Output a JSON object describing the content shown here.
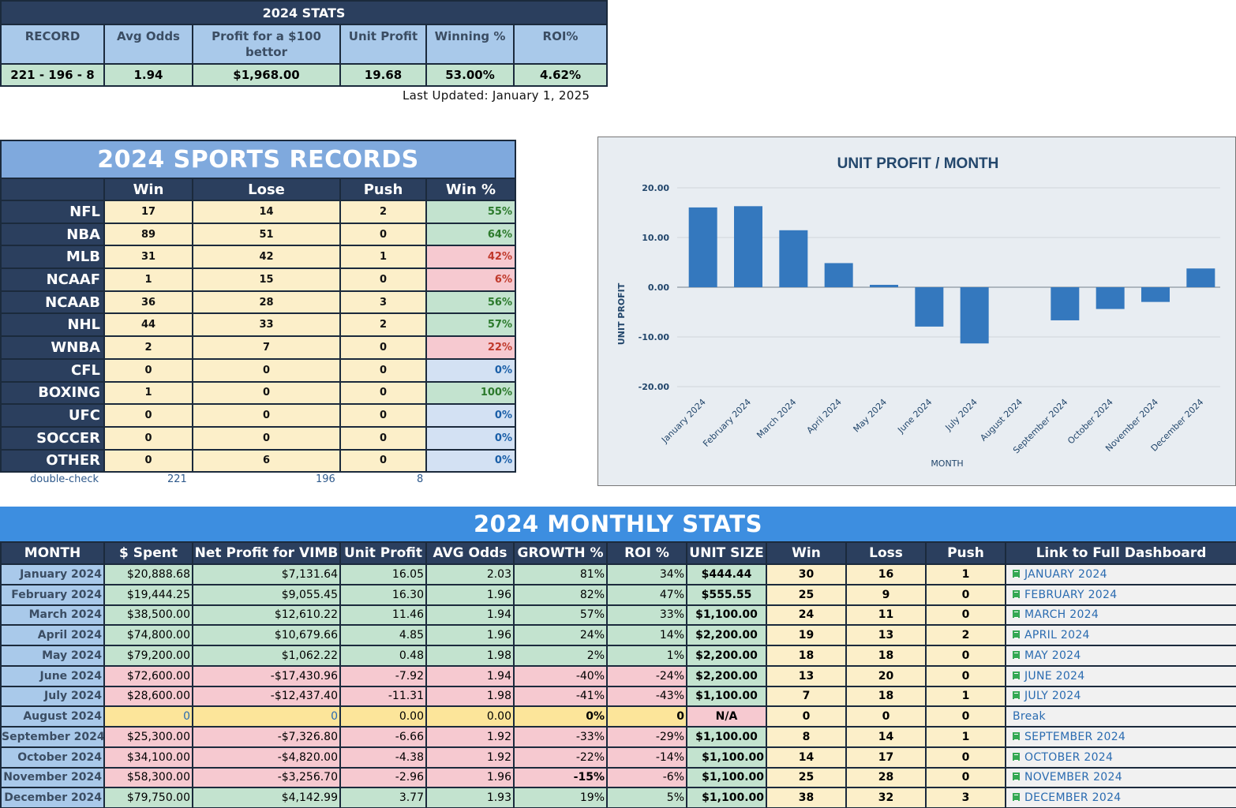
{
  "summary": {
    "title": "2024 STATS",
    "headers": [
      "RECORD",
      "Avg Odds",
      "Profit for a $100 bettor",
      "Unit Profit",
      "Winning %",
      "ROI%"
    ],
    "values": [
      "221 - 196 - 8",
      "1.94",
      "$1,968.00",
      "19.68",
      "53.00%",
      "4.62%"
    ],
    "last_updated": "Last Updated: January 1, 2025"
  },
  "sports_records": {
    "title": "2024 SPORTS RECORDS",
    "headers": [
      "",
      "Win",
      "Lose",
      "Push",
      "Win %"
    ],
    "rows": [
      {
        "sport": "NFL",
        "win": "17",
        "lose": "14",
        "push": "2",
        "pct": "55%",
        "status": "good"
      },
      {
        "sport": "NBA",
        "win": "89",
        "lose": "51",
        "push": "0",
        "pct": "64%",
        "status": "good"
      },
      {
        "sport": "MLB",
        "win": "31",
        "lose": "42",
        "push": "1",
        "pct": "42%",
        "status": "bad"
      },
      {
        "sport": "NCAAF",
        "win": "1",
        "lose": "15",
        "push": "0",
        "pct": "6%",
        "status": "bad"
      },
      {
        "sport": "NCAAB",
        "win": "36",
        "lose": "28",
        "push": "3",
        "pct": "56%",
        "status": "good"
      },
      {
        "sport": "NHL",
        "win": "44",
        "lose": "33",
        "push": "2",
        "pct": "57%",
        "status": "good"
      },
      {
        "sport": "WNBA",
        "win": "2",
        "lose": "7",
        "push": "0",
        "pct": "22%",
        "status": "bad"
      },
      {
        "sport": "CFL",
        "win": "0",
        "lose": "0",
        "push": "0",
        "pct": "0%",
        "status": "zero"
      },
      {
        "sport": "BOXING",
        "win": "1",
        "lose": "0",
        "push": "0",
        "pct": "100%",
        "status": "good"
      },
      {
        "sport": "UFC",
        "win": "0",
        "lose": "0",
        "push": "0",
        "pct": "0%",
        "status": "zero"
      },
      {
        "sport": "SOCCER",
        "win": "0",
        "lose": "0",
        "push": "0",
        "pct": "0%",
        "status": "zero"
      },
      {
        "sport": "OTHER",
        "win": "0",
        "lose": "6",
        "push": "0",
        "pct": "0%",
        "status": "zero"
      }
    ],
    "double_check": {
      "label": "double-check",
      "win": "221",
      "lose": "196",
      "push": "8"
    }
  },
  "chart_data": {
    "type": "bar",
    "title": "UNIT PROFIT / MONTH",
    "xlabel": "MONTH",
    "ylabel": "UNIT PROFIT",
    "categories": [
      "January 2024",
      "February 2024",
      "March 2024",
      "April 2024",
      "May 2024",
      "June 2024",
      "July 2024",
      "August 2024",
      "September 2024",
      "October 2024",
      "November 2024",
      "December 2024"
    ],
    "values": [
      16.05,
      16.3,
      11.46,
      4.85,
      0.48,
      -7.92,
      -11.31,
      0.0,
      -6.66,
      -4.38,
      -2.96,
      3.77
    ],
    "ylim": [
      -20,
      20
    ],
    "yticks": [
      "20.00",
      "10.00",
      "0.00",
      "-10.00",
      "-20.00"
    ],
    "yticks_values": [
      20,
      10,
      0,
      -10,
      -20
    ],
    "bar_color": "#3478be",
    "grid": true
  },
  "monthly": {
    "title": "2024 MONTHLY STATS",
    "headers": [
      "MONTH",
      "$ Spent",
      "Net Profit for VIMB",
      "Unit Profit",
      "AVG Odds",
      "GROWTH %",
      "ROI %",
      "UNIT SIZE",
      "Win",
      "Loss",
      "Push",
      "Link to Full Dashboard"
    ],
    "rows": [
      {
        "month": "January 2024",
        "spent": "$20,888.68",
        "net": "$7,131.64",
        "unit": "16.05",
        "odds": "2.03",
        "growth": "81%",
        "roi": "34%",
        "size": "$444.44",
        "win": "30",
        "loss": "16",
        "push": "1",
        "link": "JANUARY 2024",
        "status": "green"
      },
      {
        "month": "February 2024",
        "spent": "$19,444.25",
        "net": "$9,055.45",
        "unit": "16.30",
        "odds": "1.96",
        "growth": "82%",
        "roi": "47%",
        "size": "$555.55",
        "win": "25",
        "loss": "9",
        "push": "0",
        "link": "FEBRUARY 2024",
        "status": "green"
      },
      {
        "month": "March 2024",
        "spent": "$38,500.00",
        "net": "$12,610.22",
        "unit": "11.46",
        "odds": "1.94",
        "growth": "57%",
        "roi": "33%",
        "size": "$1,100.00",
        "win": "24",
        "loss": "11",
        "push": "0",
        "link": "MARCH 2024",
        "status": "green"
      },
      {
        "month": "April 2024",
        "spent": "$74,800.00",
        "net": "$10,679.66",
        "unit": "4.85",
        "odds": "1.96",
        "growth": "24%",
        "roi": "14%",
        "size": "$2,200.00",
        "win": "19",
        "loss": "13",
        "push": "2",
        "link": "APRIL 2024",
        "status": "green"
      },
      {
        "month": "May 2024",
        "spent": "$79,200.00",
        "net": "$1,062.22",
        "unit": "0.48",
        "odds": "1.98",
        "growth": "2%",
        "roi": "1%",
        "size": "$2,200.00",
        "win": "18",
        "loss": "18",
        "push": "0",
        "link": "MAY 2024",
        "status": "green"
      },
      {
        "month": "June 2024",
        "spent": "$72,600.00",
        "net": "-$17,430.96",
        "unit": "-7.92",
        "odds": "1.94",
        "growth": "-40%",
        "roi": "-24%",
        "size": "$2,200.00",
        "win": "13",
        "loss": "20",
        "push": "0",
        "link": "JUNE 2024",
        "status": "red"
      },
      {
        "month": "July 2024",
        "spent": "$28,600.00",
        "net": "-$12,437.40",
        "unit": "-11.31",
        "odds": "1.98",
        "growth": "-41%",
        "roi": "-43%",
        "size": "$1,100.00",
        "win": "7",
        "loss": "18",
        "push": "1",
        "link": "JULY 2024",
        "status": "red"
      },
      {
        "month": "August 2024",
        "spent": "0",
        "net": "0",
        "unit": "0.00",
        "odds": "0.00",
        "growth": "0%",
        "roi": "0",
        "size": "N/A",
        "win": "0",
        "loss": "0",
        "push": "0",
        "link": "Break",
        "status": "yellow"
      },
      {
        "month": "September 2024",
        "spent": "$25,300.00",
        "net": "-$7,326.80",
        "unit": "-6.66",
        "odds": "1.92",
        "growth": "-33%",
        "roi": "-29%",
        "size": "$1,100.00",
        "win": "8",
        "loss": "14",
        "push": "1",
        "link": "SEPTEMBER 2024",
        "status": "red"
      },
      {
        "month": "October 2024",
        "spent": "$34,100.00",
        "net": "-$4,820.00",
        "unit": "-4.38",
        "odds": "1.92",
        "growth": "-22%",
        "roi": "-14%",
        "size": "$1,100.00",
        "win": "14",
        "loss": "17",
        "push": "0",
        "link": "OCTOBER 2024",
        "status": "red"
      },
      {
        "month": "November 2024",
        "spent": "$58,300.00",
        "net": "-$3,256.70",
        "unit": "-2.96",
        "odds": "1.96",
        "growth": "-15%",
        "roi": "-6%",
        "size": "$1,100.00",
        "win": "25",
        "loss": "28",
        "push": "0",
        "link": "NOVEMBER 2024",
        "status": "red"
      },
      {
        "month": "December 2024",
        "spent": "$79,750.00",
        "net": "$4,142.99",
        "unit": "3.77",
        "odds": "1.93",
        "growth": "19%",
        "roi": "5%",
        "size": "$1,100.00",
        "win": "38",
        "loss": "32",
        "push": "3",
        "link": "DECEMBER 2024",
        "status": "green"
      }
    ]
  }
}
